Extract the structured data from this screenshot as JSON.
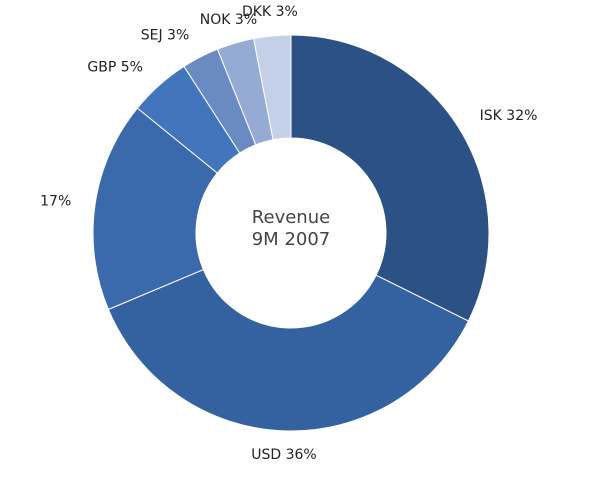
{
  "chart_data": {
    "type": "pie",
    "title": "Revenue",
    "subtitle": "9M 2007",
    "categories": [
      "ISK",
      "USD",
      null,
      "GBP",
      "SEJ",
      "NOK",
      "DKK"
    ],
    "values": [
      32,
      36,
      17,
      5,
      3,
      3,
      3
    ],
    "value_labels": [
      "32%",
      "36%",
      "17%",
      "5%",
      "3%",
      "3%",
      "3%"
    ],
    "colors": [
      "#2b5185",
      "#3462a1",
      "#3a6aab",
      "#4275bb",
      "#6a8bc2",
      "#95abd3",
      "#c4d0e7"
    ],
    "donut": true
  }
}
